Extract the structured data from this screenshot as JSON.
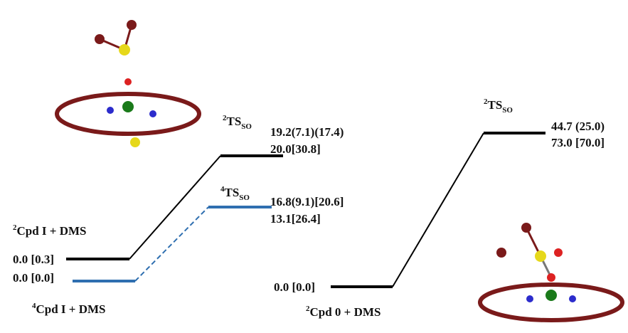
{
  "species": [
    {
      "sup": "2",
      "main": "Cpd I + DMS"
    },
    {
      "sup": "4",
      "main": "Cpd I + DMS"
    },
    {
      "sup": "2",
      "main": "Cpd 0 + DMS"
    }
  ],
  "reactant_energies": [
    "0.0 [0.3]",
    "0.0 [0.0]",
    "0.0 [0.0]"
  ],
  "transition_states": [
    {
      "sup": "2",
      "main": "TS",
      "sub": "SO",
      "energies": [
        "19.2(7.1)(17.4)",
        "20.0[30.8]"
      ]
    },
    {
      "sup": "4",
      "main": "TS",
      "sub": "SO",
      "energies": [
        "16.8(9.1)[20.6]",
        "13.1[26.4]"
      ]
    },
    {
      "sup": "2",
      "main": "TS",
      "sub": "SO",
      "energies": [
        "44.7 (25.0)",
        "73.0 [70.0]"
      ]
    }
  ]
}
